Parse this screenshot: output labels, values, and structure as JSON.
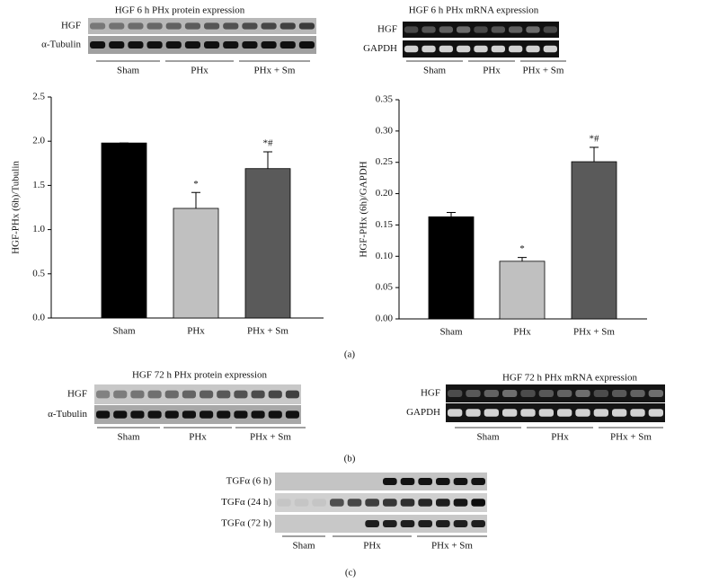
{
  "chart_data": [
    {
      "type": "bar",
      "ylabel": "HGF-PHx (6h)/Tubulin",
      "categories": [
        "Sham",
        "PHx",
        "PHx + Sm"
      ],
      "values": [
        1.98,
        1.24,
        1.69
      ],
      "errors": [
        0,
        0.18,
        0.19
      ],
      "annotations": [
        null,
        "*",
        "*#"
      ],
      "colors": [
        "#000000",
        "#c0c0c0",
        "#5a5a5a"
      ],
      "ylim": [
        0,
        2.5
      ],
      "yticks": [
        {
          "value": 0,
          "label": "0.0"
        },
        {
          "value": 0.5,
          "label": "0.5"
        },
        {
          "value": 1,
          "label": "1.0"
        },
        {
          "value": 1.5,
          "label": "1.5"
        },
        {
          "value": 2,
          "label": "2.0"
        },
        {
          "value": 2.5,
          "label": "2.5"
        }
      ]
    },
    {
      "type": "bar",
      "ylabel": "HGF-PHx (6h)/GAPDH",
      "categories": [
        "Sham",
        "PHx",
        "PHx + Sm"
      ],
      "values": [
        0.163,
        0.092,
        0.251
      ],
      "errors": [
        0.007,
        0.006,
        0.023
      ],
      "annotations": [
        null,
        "*",
        "*#"
      ],
      "colors": [
        "#000000",
        "#c0c0c0",
        "#5a5a5a"
      ],
      "ylim": [
        0,
        0.35
      ],
      "yticks": [
        {
          "value": 0,
          "label": "0.00"
        },
        {
          "value": 0.05,
          "label": "0.05"
        },
        {
          "value": 0.1,
          "label": "0.10"
        },
        {
          "value": 0.15,
          "label": "0.15"
        },
        {
          "value": 0.2,
          "label": "0.20"
        },
        {
          "value": 0.25,
          "label": "0.25"
        },
        {
          "value": 0.3,
          "label": "0.30"
        },
        {
          "value": 0.35,
          "label": "0.35"
        }
      ]
    }
  ],
  "blots": [
    {
      "title": "HGF 6 h PHx protein expression",
      "rows": [
        "HGF",
        "α-Tubulin"
      ],
      "groups": [
        "Sham",
        "PHx",
        "PHx + Sm"
      ]
    },
    {
      "title": "HGF 6 h PHx mRNA expression",
      "rows": [
        "HGF",
        "GAPDH"
      ],
      "groups": [
        "Sham",
        "PHx",
        "PHx + Sm"
      ]
    },
    {
      "title": "HGF 72 h PHx protein expression",
      "rows": [
        "HGF",
        "α-Tubulin"
      ],
      "groups": [
        "Sham",
        "PHx",
        "PHx + Sm"
      ]
    },
    {
      "title": "HGF 72 h PHx mRNA expression",
      "rows": [
        "HGF",
        "GAPDH"
      ],
      "groups": [
        "Sham",
        "PHx",
        "PHx + Sm"
      ]
    },
    {
      "rows": [
        "TGFα (6 h)",
        "TGFα (24 h)",
        "TGFα (72 h)"
      ],
      "groups": [
        "Sham",
        "PHx",
        "PHx + Sm"
      ]
    }
  ],
  "panel_labels": [
    "(a)",
    "(b)",
    "(c)"
  ]
}
